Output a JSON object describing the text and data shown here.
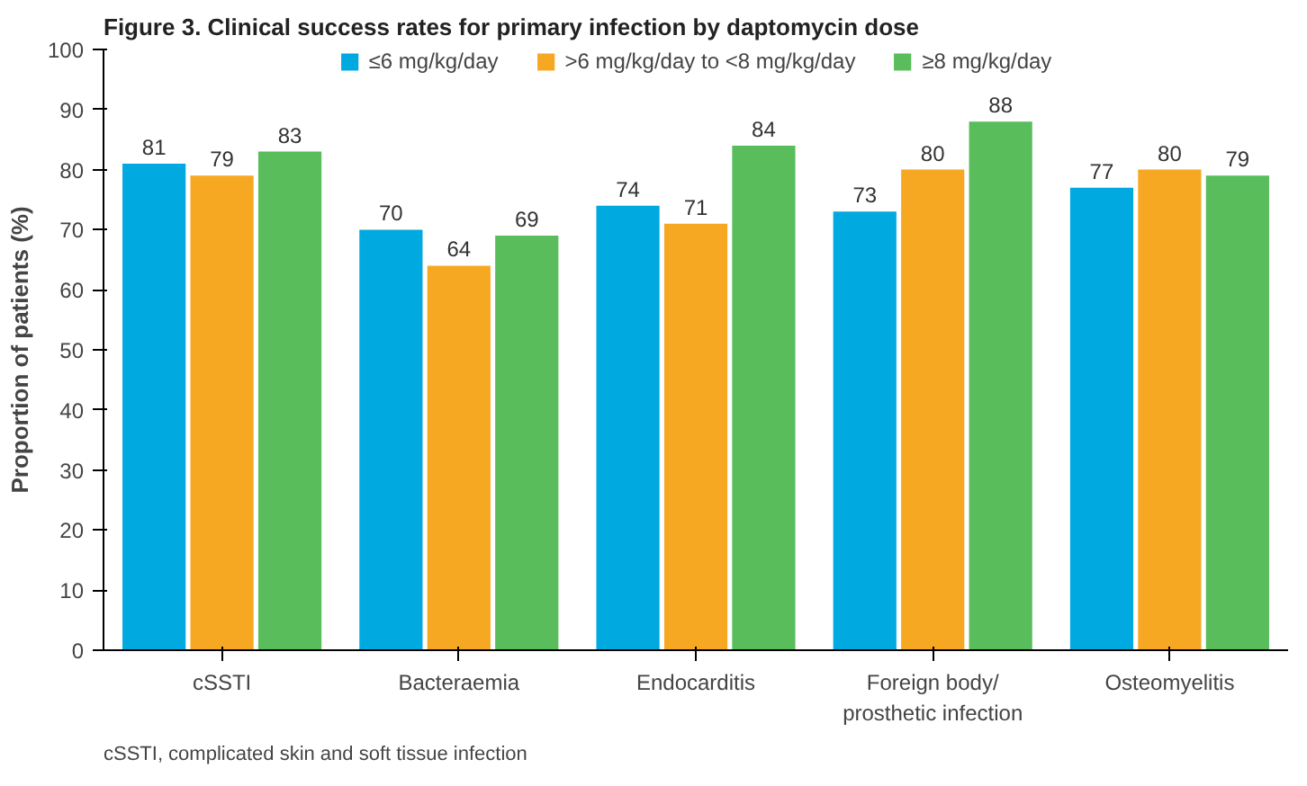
{
  "chart_data": {
    "type": "bar",
    "title": "Figure 3. Clinical success rates for primary infection by daptomycin dose",
    "categories": [
      "cSSTI",
      "Bacteraemia",
      "Endocarditis",
      "Foreign body/\nprosthetic infection",
      "Osteomyelitis"
    ],
    "series": [
      {
        "name": "≤6 mg/kg/day",
        "color": "#00a9e0",
        "values": [
          81,
          70,
          74,
          73,
          77
        ]
      },
      {
        "name": ">6 mg/kg/day to <8 mg/kg/day",
        "color": "#f7a823",
        "values": [
          79,
          64,
          71,
          80,
          80
        ]
      },
      {
        "name": "≥8 mg/kg/day",
        "color": "#58bd5a",
        "values": [
          83,
          69,
          84,
          88,
          79
        ]
      }
    ],
    "ylabel": "Proportion of patients (%)",
    "ylim": [
      0,
      100
    ],
    "yticks": [
      0,
      10,
      20,
      30,
      40,
      50,
      60,
      70,
      80,
      90,
      100
    ],
    "grid": false,
    "legend": "top",
    "data_labels": true,
    "annotations": [
      "cSSTI, complicated skin and soft tissue infection"
    ]
  }
}
